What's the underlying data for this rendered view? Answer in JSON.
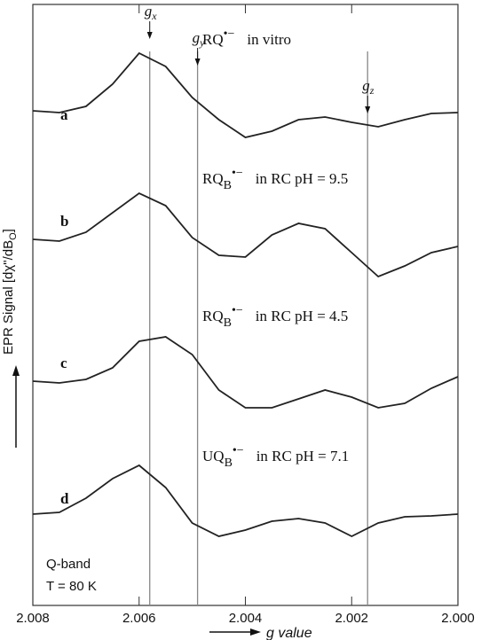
{
  "chart_data": {
    "type": "line",
    "x": [
      2.008,
      2.0075,
      2.007,
      2.0065,
      2.006,
      2.0055,
      2.005,
      2.0045,
      2.004,
      2.0035,
      2.003,
      2.0025,
      2.002,
      2.0015,
      2.001,
      2.0005,
      2.0
    ],
    "xlim": [
      2.008,
      2.0
    ],
    "xticks": [
      2.008,
      2.006,
      2.004,
      2.002,
      {
        "value": 2,
        "label": "2.000"
      }
    ],
    "ylim": [
      0,
      678
    ],
    "x_label": "g value",
    "y_label": {
      "text": "EPR Signal [dχ\"/dB",
      "sub": "O",
      "end": "]"
    },
    "series": [
      {
        "name": "a",
        "color": "#222222",
        "annotation": {
          "main": "RQ",
          "sub": "",
          "sup": "•−",
          "text": "in vitro"
        },
        "values": [
          558,
          556,
          563,
          588,
          623,
          608,
          573,
          548,
          528,
          535,
          548,
          551,
          545,
          540,
          548,
          555,
          556
        ]
      },
      {
        "name": "b",
        "color": "#222222",
        "annotation": {
          "main": "RQ",
          "sub": "B",
          "sup": "•−",
          "text": "in RC pH = 9.5"
        },
        "values": [
          413,
          411,
          421,
          443,
          465,
          451,
          415,
          395,
          393,
          418,
          431,
          425,
          398,
          371,
          383,
          398,
          405
        ]
      },
      {
        "name": "c",
        "color": "#222222",
        "annotation": {
          "main": "RQ",
          "sub": "B",
          "sup": "•−",
          "text": "in RC pH = 4.5"
        },
        "values": [
          253,
          251,
          255,
          268,
          298,
          303,
          283,
          243,
          223,
          223,
          233,
          243,
          235,
          223,
          228,
          245,
          258
        ]
      },
      {
        "name": "d",
        "color": "#222222",
        "annotation": {
          "main": "UQ",
          "sub": "B",
          "sup": "•−",
          "text": "in RC pH = 7.1"
        },
        "values": [
          103,
          105,
          121,
          143,
          158,
          133,
          93,
          78,
          85,
          95,
          98,
          93,
          78,
          93,
          100,
          101,
          103
        ]
      }
    ],
    "markers": [
      {
        "symbol": "g",
        "sub": "x",
        "value": 2.0058
      },
      {
        "symbol": "g",
        "sub": "y",
        "value": 2.0049
      },
      {
        "symbol": "g",
        "sub": "z",
        "value": 2.0017
      }
    ],
    "notes": [
      "Q-band",
      "T = 80 K"
    ]
  }
}
